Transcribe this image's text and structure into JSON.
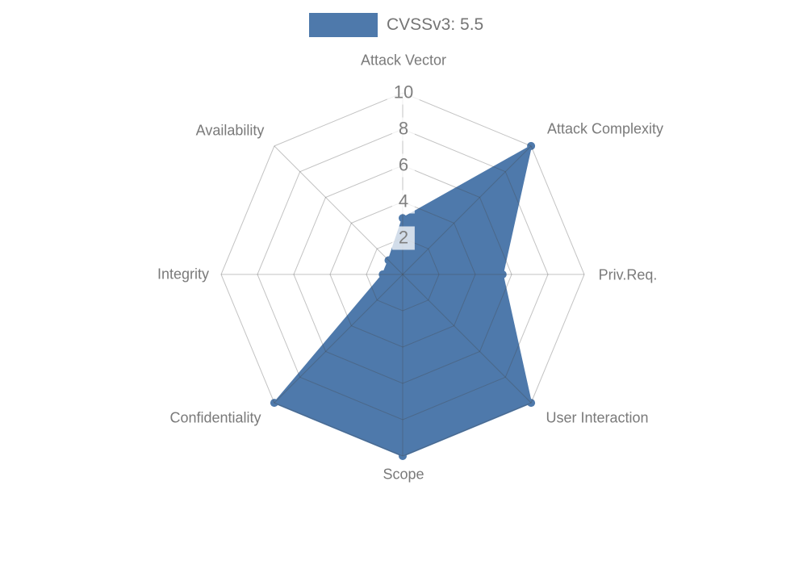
{
  "legend": {
    "label": "CVSSv3: 5.5"
  },
  "chart_data": {
    "type": "radar",
    "title": "CVSSv3: 5.5",
    "axes": [
      "Attack Vector",
      "Attack Complexity",
      "Priv.Req.",
      "User Interaction",
      "Scope",
      "Confidentiality",
      "Integrity",
      "Availability"
    ],
    "series": [
      {
        "name": "CVSSv3: 5.5",
        "color": "#4e79ab",
        "values": [
          3.1,
          10,
          5.5,
          10,
          10,
          10,
          1.1,
          1.1
        ]
      }
    ],
    "rticks": [
      2,
      4,
      6,
      8,
      10
    ],
    "rlim": [
      0,
      10
    ],
    "grid": {
      "shape": "octagonal-web",
      "rings": 5,
      "color": "rgba(68,68,68,0.32)"
    },
    "legend_position": "top-center"
  },
  "colors": {
    "series_fill": "#4e79ab",
    "axis_label_text": "#7a7a7a",
    "tick_label_text": "#7f7f7f",
    "tick_box_background": "rgba(255,255,255,0.75)",
    "legend_text": "#757575"
  }
}
